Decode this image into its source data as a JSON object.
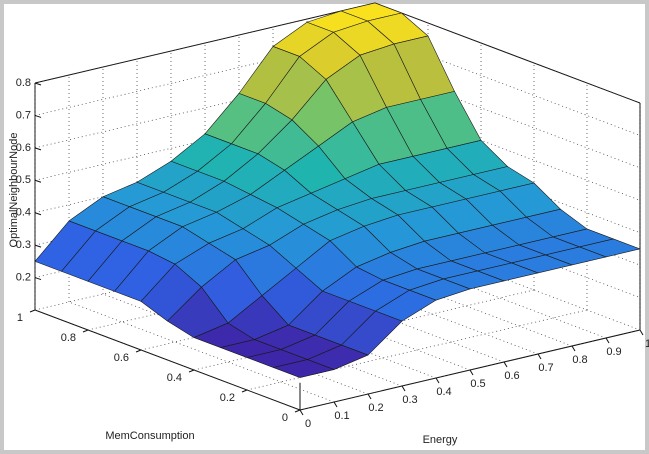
{
  "chart_data": {
    "type": "surface",
    "xlabel": "Energy",
    "ylabel": "MemConsumption",
    "zlabel": "OptimalNeighbourNode",
    "x": [
      0,
      0.1,
      0.2,
      0.3,
      0.4,
      0.5,
      0.6,
      0.7,
      0.8,
      0.9,
      1
    ],
    "y": [
      0,
      0.1,
      0.2,
      0.3,
      0.4,
      0.5,
      0.6,
      0.7,
      0.8,
      0.9,
      1
    ],
    "z": [
      [
        0.2,
        0.2,
        0.22,
        0.3,
        0.34,
        0.35,
        0.35,
        0.35,
        0.35,
        0.35,
        0.35
      ],
      [
        0.2,
        0.2,
        0.22,
        0.3,
        0.34,
        0.35,
        0.35,
        0.35,
        0.35,
        0.35,
        0.35
      ],
      [
        0.2,
        0.2,
        0.22,
        0.3,
        0.34,
        0.35,
        0.35,
        0.35,
        0.35,
        0.35,
        0.35
      ],
      [
        0.2,
        0.2,
        0.22,
        0.3,
        0.35,
        0.37,
        0.38,
        0.38,
        0.38,
        0.38,
        0.38
      ],
      [
        0.2,
        0.22,
        0.28,
        0.34,
        0.4,
        0.42,
        0.43,
        0.43,
        0.43,
        0.43,
        0.43
      ],
      [
        0.22,
        0.3,
        0.36,
        0.38,
        0.42,
        0.44,
        0.45,
        0.45,
        0.45,
        0.45,
        0.45
      ],
      [
        0.25,
        0.34,
        0.38,
        0.4,
        0.44,
        0.46,
        0.48,
        0.5,
        0.5,
        0.5,
        0.5
      ],
      [
        0.25,
        0.35,
        0.4,
        0.42,
        0.45,
        0.5,
        0.55,
        0.6,
        0.62,
        0.62,
        0.62
      ],
      [
        0.25,
        0.35,
        0.4,
        0.42,
        0.46,
        0.52,
        0.6,
        0.7,
        0.75,
        0.76,
        0.76
      ],
      [
        0.25,
        0.35,
        0.4,
        0.42,
        0.46,
        0.52,
        0.62,
        0.74,
        0.79,
        0.8,
        0.8
      ],
      [
        0.25,
        0.35,
        0.4,
        0.42,
        0.46,
        0.52,
        0.62,
        0.74,
        0.79,
        0.8,
        0.8
      ]
    ],
    "xlim": [
      0,
      1
    ],
    "xticks": [
      0,
      0.1,
      0.2,
      0.3,
      0.4,
      0.5,
      0.6,
      0.7,
      0.8,
      0.9,
      1
    ],
    "ylim": [
      0,
      1
    ],
    "yticks": [
      0,
      0.2,
      0.4,
      0.6,
      0.8,
      1
    ],
    "zlim": [
      0.1,
      0.8
    ],
    "zticks": [
      0.2,
      0.3,
      0.4,
      0.5,
      0.6,
      0.7,
      0.8
    ],
    "grid": true,
    "colormap": [
      "#3e26a8",
      "#2f63e4",
      "#2597d8",
      "#20b5ae",
      "#6cc46f",
      "#c3bf37",
      "#f9e11e"
    ]
  }
}
